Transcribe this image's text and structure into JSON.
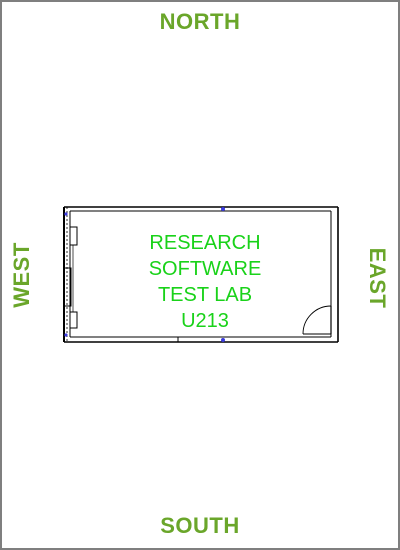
{
  "compass": {
    "north": "NORTH",
    "south": "SOUTH",
    "east": "EAST",
    "west": "WEST"
  },
  "room": {
    "label_lines": [
      "RESEARCH",
      "SOFTWARE",
      "TEST LAB",
      "U213"
    ]
  },
  "colors": {
    "compass_text": "#6aa62a",
    "room_label": "#19d219",
    "frame_border": "#7f7f7f",
    "walls": "#000000",
    "window_marks": "#3b3bdd"
  }
}
